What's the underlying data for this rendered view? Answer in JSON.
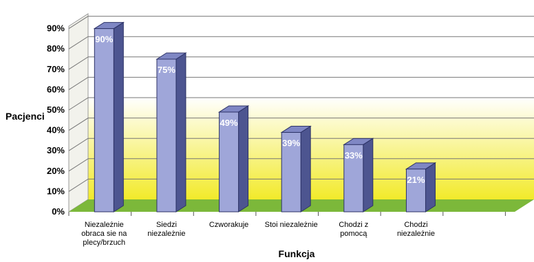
{
  "chart_data": {
    "type": "bar",
    "categories": [
      [
        "Niezależnie",
        "obraca sie na",
        "plecy/brzuch"
      ],
      [
        "Siedzi",
        "niezależnie"
      ],
      [
        "Czworakuje"
      ],
      [
        "Stoi niezależnie"
      ],
      [
        "Chodzi z",
        "pomocą"
      ],
      [
        "Chodzi",
        "niezależnie"
      ]
    ],
    "values": [
      90,
      75,
      49,
      39,
      33,
      21
    ],
    "value_labels": [
      "90%",
      "75%",
      "49%",
      "39%",
      "33%",
      "21%"
    ],
    "y_ticks": [
      "0%",
      "10%",
      "20%",
      "30%",
      "40%",
      "50%",
      "60%",
      "70%",
      "80%",
      "90%"
    ],
    "ylim": [
      0,
      90
    ],
    "xlabel": "Funkcja",
    "ylabel": "Pacjenci",
    "colors": {
      "bar_front": "#9fa6d9",
      "bar_side": "#4d5590",
      "bar_top": "#7f87c4",
      "floor": "#7cb83a",
      "wall_top": "#ffffff",
      "wall_bottom": "#f2ea2a",
      "grid": "#777777"
    }
  }
}
